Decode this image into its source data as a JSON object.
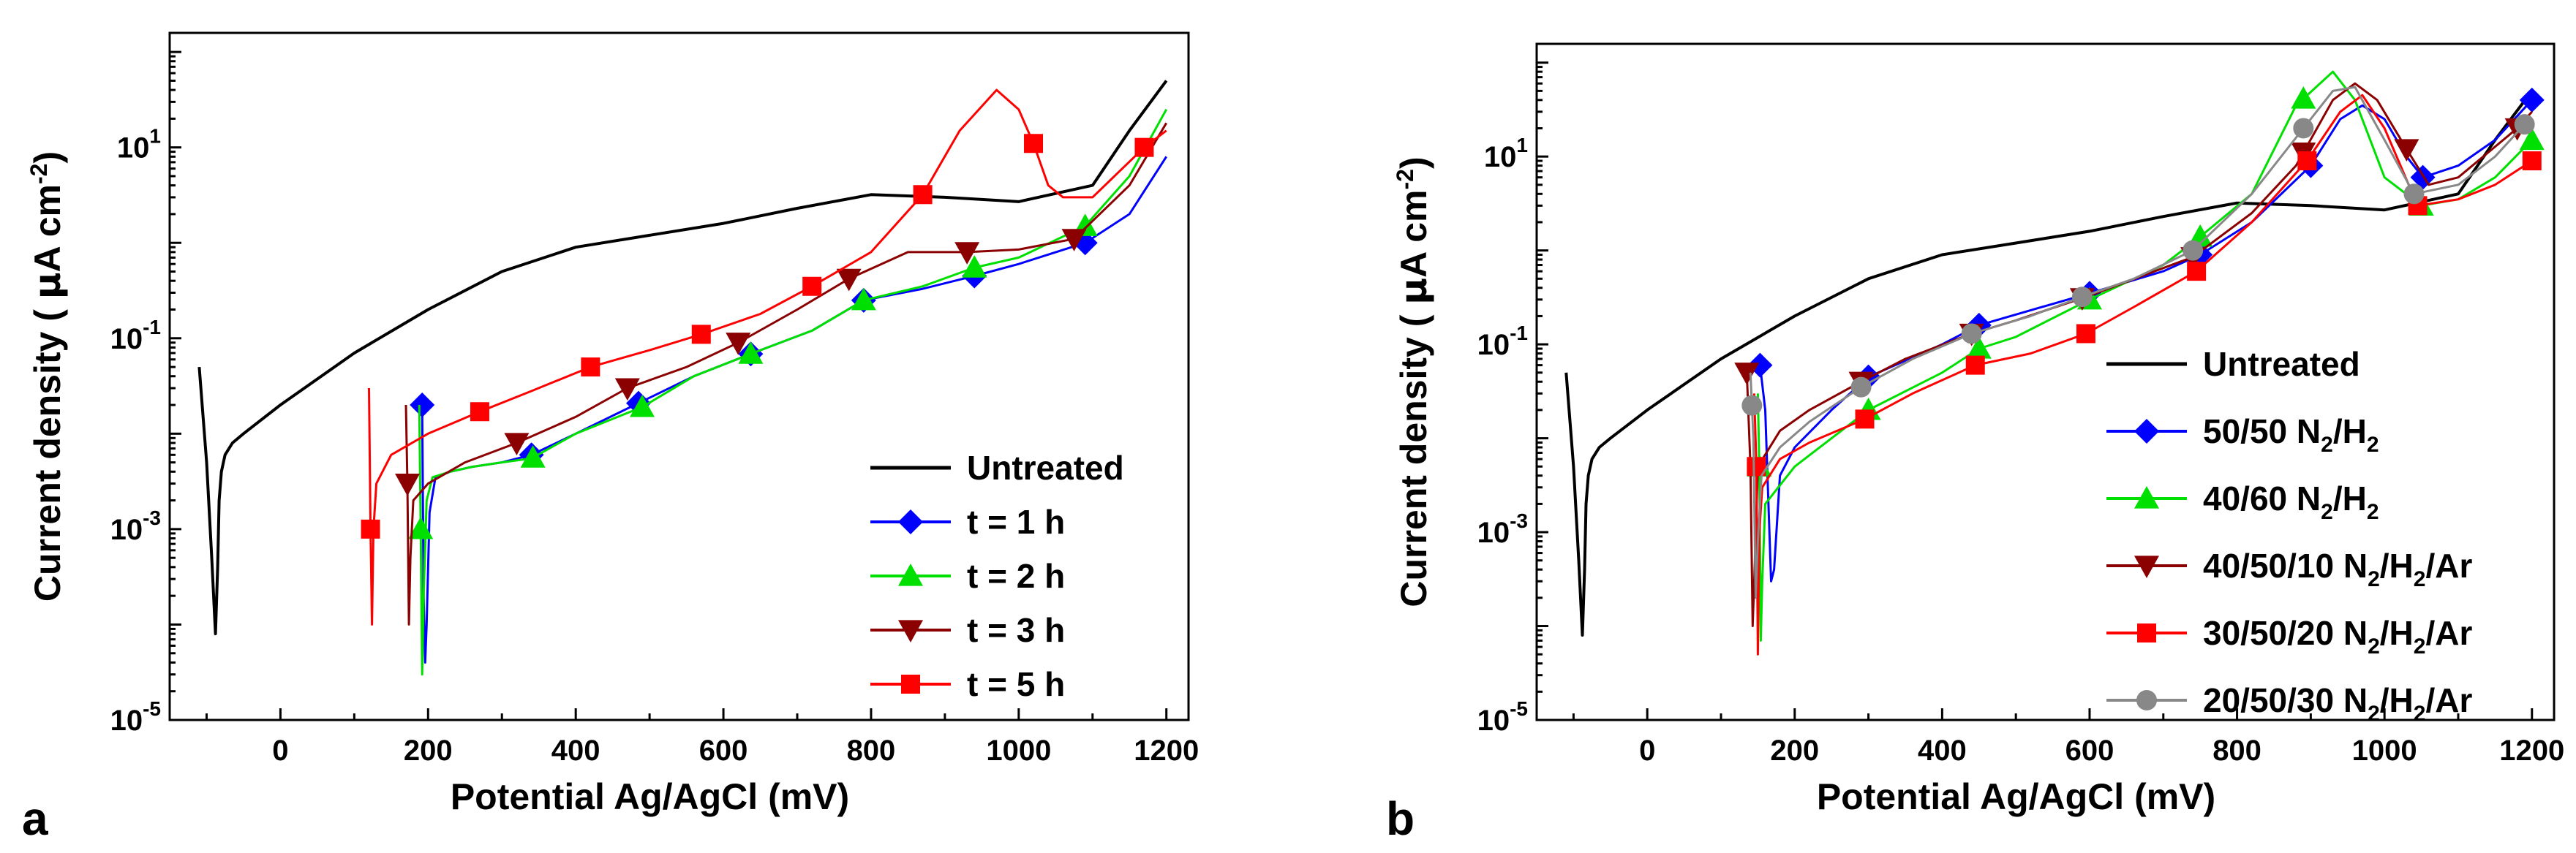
{
  "chart_data": [
    {
      "panel": "a",
      "type": "line",
      "title": "",
      "xlabel": "Potential Ag/AgCl (mV)",
      "ylabel_main": "Current density (",
      "ylabel_mu": "μ",
      "ylabel_rest": "A cm",
      "ylabel_exp": "-2",
      "ylabel_close": ")",
      "xlim": [
        -150,
        1230
      ],
      "ylim_log10": [
        -5,
        2.2
      ],
      "y_scale": "log",
      "x_ticks": [
        0,
        200,
        400,
        600,
        800,
        1000,
        1200
      ],
      "x_tick_labels": [
        "0",
        "200",
        "400",
        "600",
        "800",
        "1000",
        "1200"
      ],
      "y_ticks_log10": [
        -5,
        -3,
        -1,
        1
      ],
      "y_tick_base": "10",
      "y_tick_exps": [
        "-5",
        "-3",
        "-1",
        "1"
      ],
      "legend_position": "lower-right",
      "series": [
        {
          "name": "Untreated",
          "color": "#000000",
          "marker": "none",
          "x": [
            -110,
            -100,
            -93,
            -88,
            -85,
            -83,
            -80,
            -75,
            -65,
            -50,
            0,
            100,
            200,
            300,
            400,
            500,
            600,
            700,
            800,
            900,
            1000,
            1100,
            1150,
            1200
          ],
          "y": [
            0.05,
            0.005,
            0.0005,
            8e-05,
            0.0004,
            0.002,
            0.004,
            0.006,
            0.008,
            0.01,
            0.02,
            0.07,
            0.2,
            0.5,
            0.9,
            1.2,
            1.6,
            2.3,
            3.2,
            3.0,
            2.7,
            4.0,
            15,
            50
          ]
        },
        {
          "name": "t = 1 h",
          "color": "#0000ff",
          "marker": "diamond",
          "x": [
            192,
            194,
            196,
            198,
            202,
            210,
            230,
            260,
            300,
            340,
            400,
            480,
            560,
            640,
            720,
            790,
            870,
            940,
            1000,
            1090,
            1150,
            1200
          ],
          "y": [
            0.02,
            0.0002,
            4e-05,
            0.0001,
            0.0015,
            0.0035,
            0.004,
            0.0045,
            0.005,
            0.006,
            0.01,
            0.02,
            0.04,
            0.07,
            0.12,
            0.25,
            0.33,
            0.45,
            0.6,
            1.0,
            2.0,
            8.0
          ],
          "marker_x": [
            192,
            340,
            485,
            637,
            790,
            940,
            1090
          ]
        },
        {
          "name": "t = 2 h",
          "color": "#00e000",
          "marker": "triangle-up",
          "x": [
            188,
            190,
            192,
            194,
            198,
            206,
            230,
            260,
            300,
            340,
            400,
            490,
            560,
            640,
            720,
            790,
            870,
            940,
            1000,
            1090,
            1150,
            1200
          ],
          "y": [
            0.02,
            0.001,
            3e-05,
            0.0002,
            0.002,
            0.0035,
            0.004,
            0.0045,
            0.005,
            0.0055,
            0.01,
            0.019,
            0.04,
            0.07,
            0.12,
            0.25,
            0.35,
            0.55,
            0.7,
            1.5,
            5.0,
            25
          ],
          "marker_x": [
            190,
            342,
            490,
            637,
            790,
            940,
            1090
          ]
        },
        {
          "name": "t = 3 h",
          "color": "#8b0000",
          "marker": "triangle-down",
          "x": [
            170,
            172,
            174,
            176,
            180,
            200,
            250,
            320,
            400,
            470,
            550,
            620,
            700,
            770,
            850,
            930,
            1000,
            1075,
            1150,
            1200
          ],
          "y": [
            0.02,
            0.003,
            0.0001,
            0.0005,
            0.002,
            0.003,
            0.005,
            0.008,
            0.015,
            0.03,
            0.05,
            0.09,
            0.2,
            0.42,
            0.8,
            0.8,
            0.85,
            1.1,
            4.0,
            18
          ],
          "marker_x": [
            172,
            320,
            470,
            620,
            770,
            930,
            1075
          ]
        },
        {
          "name": "t = 5 h",
          "color": "#ff0000",
          "marker": "square",
          "x": [
            120,
            122,
            124,
            126,
            130,
            150,
            200,
            270,
            340,
            420,
            500,
            570,
            650,
            720,
            800,
            870,
            920,
            970,
            1000,
            1020,
            1040,
            1060,
            1100,
            1170,
            1200
          ],
          "y": [
            0.03,
            0.001,
            0.0001,
            0.001,
            0.003,
            0.006,
            0.01,
            0.017,
            0.028,
            0.05,
            0.075,
            0.11,
            0.18,
            0.35,
            0.8,
            3.2,
            15,
            40,
            25,
            11,
            4,
            3,
            3,
            10,
            15
          ],
          "marker_x": [
            122,
            270,
            420,
            570,
            720,
            870,
            1020,
            1170
          ]
        }
      ]
    },
    {
      "panel": "b",
      "type": "line",
      "title": "",
      "xlabel": "Potential Ag/AgCl (mV)",
      "ylabel_main": "Current density (",
      "ylabel_mu": "μ",
      "ylabel_rest": "A cm",
      "ylabel_exp": "-2",
      "ylabel_close": ")",
      "xlim": [
        -150,
        1230
      ],
      "ylim_log10": [
        -5,
        2.2
      ],
      "y_scale": "log",
      "x_ticks": [
        0,
        200,
        400,
        600,
        800,
        1000,
        1200
      ],
      "x_tick_labels": [
        "0",
        "200",
        "400",
        "600",
        "800",
        "1000",
        "1200"
      ],
      "y_ticks_log10": [
        -5,
        -3,
        -1,
        1
      ],
      "y_tick_base": "10",
      "y_tick_exps": [
        "-5",
        "-3",
        "-1",
        "1"
      ],
      "legend_position": "lower-right",
      "series": [
        {
          "name": "Untreated",
          "color": "#000000",
          "marker": "none",
          "x": [
            -110,
            -100,
            -93,
            -88,
            -85,
            -83,
            -80,
            -75,
            -65,
            -50,
            0,
            100,
            200,
            300,
            400,
            500,
            600,
            700,
            800,
            900,
            1000,
            1100,
            1150,
            1200
          ],
          "y": [
            0.05,
            0.005,
            0.0005,
            8e-05,
            0.0004,
            0.002,
            0.004,
            0.006,
            0.008,
            0.01,
            0.02,
            0.07,
            0.2,
            0.5,
            0.9,
            1.2,
            1.6,
            2.3,
            3.2,
            3.0,
            2.7,
            4.0,
            15,
            50
          ]
        },
        {
          "label_main": "50/50 N",
          "label_sub": [
            "2",
            "2"
          ],
          "label_parts": [
            "/H"
          ],
          "name": "50/50 N2/H2",
          "color": "#0000ff",
          "marker": "diamond",
          "x": [
            153,
            160,
            168,
            172,
            180,
            200,
            250,
            300,
            400,
            450,
            600,
            700,
            750,
            820,
            900,
            940,
            970,
            1000,
            1030,
            1052,
            1100,
            1150,
            1200
          ],
          "y": [
            0.06,
            0.02,
            0.0003,
            0.0004,
            0.004,
            0.008,
            0.02,
            0.045,
            0.1,
            0.16,
            0.35,
            0.6,
            0.9,
            2.0,
            8.0,
            25,
            35,
            25,
            10,
            6,
            8,
            15,
            40
          ],
          "marker_x": [
            153,
            300,
            450,
            600,
            750,
            900,
            1052,
            1200
          ]
        },
        {
          "label_main": "40/60 N",
          "label_sub": [
            "2",
            "2"
          ],
          "label_parts": [
            "/H"
          ],
          "name": "40/60 N2/H2",
          "color": "#00e000",
          "marker": "triangle-up",
          "x": [
            150,
            152,
            154,
            156,
            160,
            200,
            250,
            300,
            400,
            450,
            500,
            600,
            700,
            750,
            820,
            880,
            930,
            960,
            1000,
            1050,
            1100,
            1150,
            1200
          ],
          "y": [
            0.03,
            0.005,
            7e-05,
            0.0003,
            0.002,
            0.005,
            0.01,
            0.02,
            0.05,
            0.09,
            0.12,
            0.3,
            0.7,
            1.4,
            4.0,
            35,
            80,
            40,
            6,
            3,
            3.5,
            6,
            15
          ],
          "marker_x": [
            152,
            300,
            450,
            600,
            750,
            890,
            1050,
            1200
          ]
        },
        {
          "label_main": "40/50/10 N",
          "label_sub": [
            "2",
            "2"
          ],
          "label_parts": [
            "/H",
            "/Ar"
          ],
          "name": "40/50/10 N2/H2/Ar",
          "color": "#8b0000",
          "marker": "triangle-down",
          "x": [
            135,
            140,
            143,
            146,
            150,
            180,
            220,
            290,
            350,
            440,
            500,
            600,
            700,
            740,
            820,
            880,
            930,
            960,
            990,
            1030,
            1060,
            1100,
            1180,
            1200
          ],
          "y": [
            0.05,
            0.005,
            0.0001,
            0.0005,
            0.005,
            0.012,
            0.02,
            0.04,
            0.07,
            0.13,
            0.18,
            0.33,
            0.65,
            0.85,
            2.5,
            8,
            40,
            60,
            40,
            12,
            5,
            6,
            20,
            30
          ],
          "marker_x": [
            135,
            290,
            440,
            590,
            740,
            890,
            1030,
            1180
          ]
        },
        {
          "label_main": "30/50/20 N",
          "label_sub": [
            "2",
            "2"
          ],
          "label_parts": [
            "/H",
            "/Ar"
          ],
          "name": "30/50/20 N2/H2/Ar",
          "color": "#ff0000",
          "marker": "square",
          "x": [
            145,
            148,
            150,
            152,
            156,
            180,
            220,
            295,
            360,
            445,
            520,
            595,
            660,
            745,
            820,
            895,
            940,
            970,
            1000,
            1045,
            1100,
            1150,
            1200
          ],
          "y": [
            0.03,
            0.005,
            5e-05,
            0.001,
            0.003,
            0.006,
            0.009,
            0.016,
            0.03,
            0.06,
            0.08,
            0.13,
            0.25,
            0.6,
            2.0,
            9,
            30,
            45,
            20,
            3,
            3.5,
            5,
            9
          ],
          "marker_x": [
            148,
            295,
            445,
            595,
            745,
            895,
            1045,
            1200
          ]
        },
        {
          "label_main": "20/50/30 N",
          "label_sub": [
            "2",
            "2"
          ],
          "label_parts": [
            "/H",
            "/Ar"
          ],
          "name": "20/50/30 N2/H2/Ar",
          "color": "#888888",
          "marker": "circle",
          "x": [
            140,
            144,
            147,
            150,
            155,
            180,
            220,
            290,
            360,
            440,
            520,
            590,
            660,
            740,
            820,
            890,
            930,
            960,
            1000,
            1040,
            1100,
            1150,
            1190
          ],
          "y": [
            0.05,
            0.01,
            0.0002,
            0.0008,
            0.004,
            0.008,
            0.015,
            0.035,
            0.07,
            0.13,
            0.2,
            0.32,
            0.5,
            1.0,
            4.0,
            20,
            50,
            55,
            15,
            4,
            5,
            10,
            22
          ],
          "marker_x": [
            142,
            290,
            440,
            590,
            740,
            890,
            1040,
            1190
          ]
        }
      ]
    }
  ]
}
